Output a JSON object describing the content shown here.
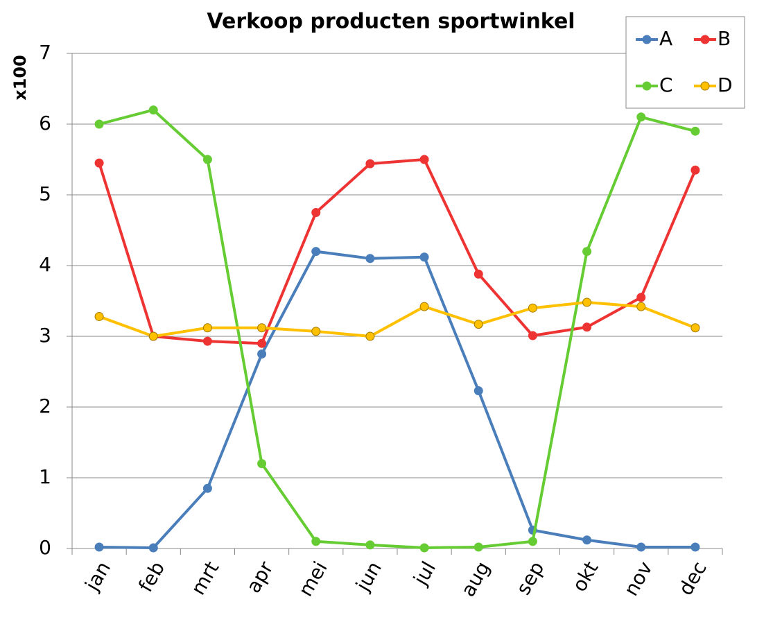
{
  "chart_data": {
    "type": "line",
    "title": "Verkoop producten sportwinkel",
    "y_label": "x100",
    "categories": [
      "jan",
      "feb",
      "mrt",
      "apr",
      "mei",
      "jun",
      "jul",
      "aug",
      "sep",
      "okt",
      "nov",
      "dec"
    ],
    "series": [
      {
        "name": "A",
        "color": "#4a7ebb",
        "values": [
          0.02,
          0.01,
          0.85,
          2.75,
          4.2,
          4.1,
          4.12,
          2.23,
          0.26,
          0.12,
          0.02,
          0.02
        ]
      },
      {
        "name": "B",
        "color": "#ee3333",
        "values": [
          5.45,
          3.0,
          2.93,
          2.9,
          4.75,
          5.44,
          5.5,
          3.88,
          3.01,
          3.13,
          3.55,
          5.35
        ]
      },
      {
        "name": "C",
        "color": "#66cc33",
        "values": [
          6.0,
          6.2,
          5.5,
          1.2,
          0.1,
          0.05,
          0.01,
          0.02,
          0.1,
          4.2,
          6.1,
          5.9
        ]
      },
      {
        "name": "D",
        "color": "#ffc000",
        "values": [
          3.28,
          3.0,
          3.12,
          3.12,
          3.07,
          3.0,
          3.42,
          3.17,
          3.4,
          3.48,
          3.42,
          3.12
        ]
      }
    ],
    "ylim": [
      0,
      7
    ],
    "yticks": [
      0,
      1,
      2,
      3,
      4,
      5,
      6,
      7
    ],
    "grid": true,
    "legend": "upper right"
  }
}
